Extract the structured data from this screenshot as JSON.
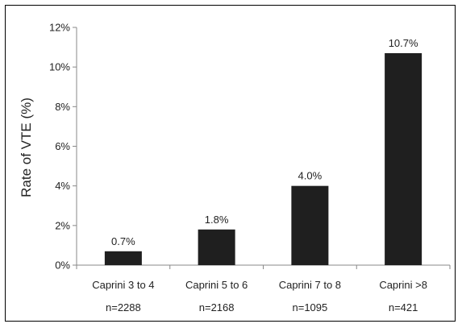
{
  "chart_data": {
    "type": "bar",
    "title": "",
    "xlabel": "",
    "ylabel": "Rate of VTE (%)",
    "ylim": [
      0,
      12
    ],
    "yticks": [
      "0%",
      "2%",
      "4%",
      "6%",
      "8%",
      "10%",
      "12%"
    ],
    "categories": [
      "Caprini 3 to 4",
      "Caprini 5 to 6",
      "Caprini 7 to 8",
      "Caprini >8"
    ],
    "sample_sizes": [
      "n=2288",
      "n=2168",
      "n=1095",
      "n=421"
    ],
    "values": [
      0.7,
      1.8,
      4.0,
      10.7
    ],
    "data_labels": [
      "0.7%",
      "1.8%",
      "4.0%",
      "10.7%"
    ],
    "grid": false,
    "legend": "none",
    "bar_color": "#1f1f1f",
    "axis_color": "#888888"
  }
}
